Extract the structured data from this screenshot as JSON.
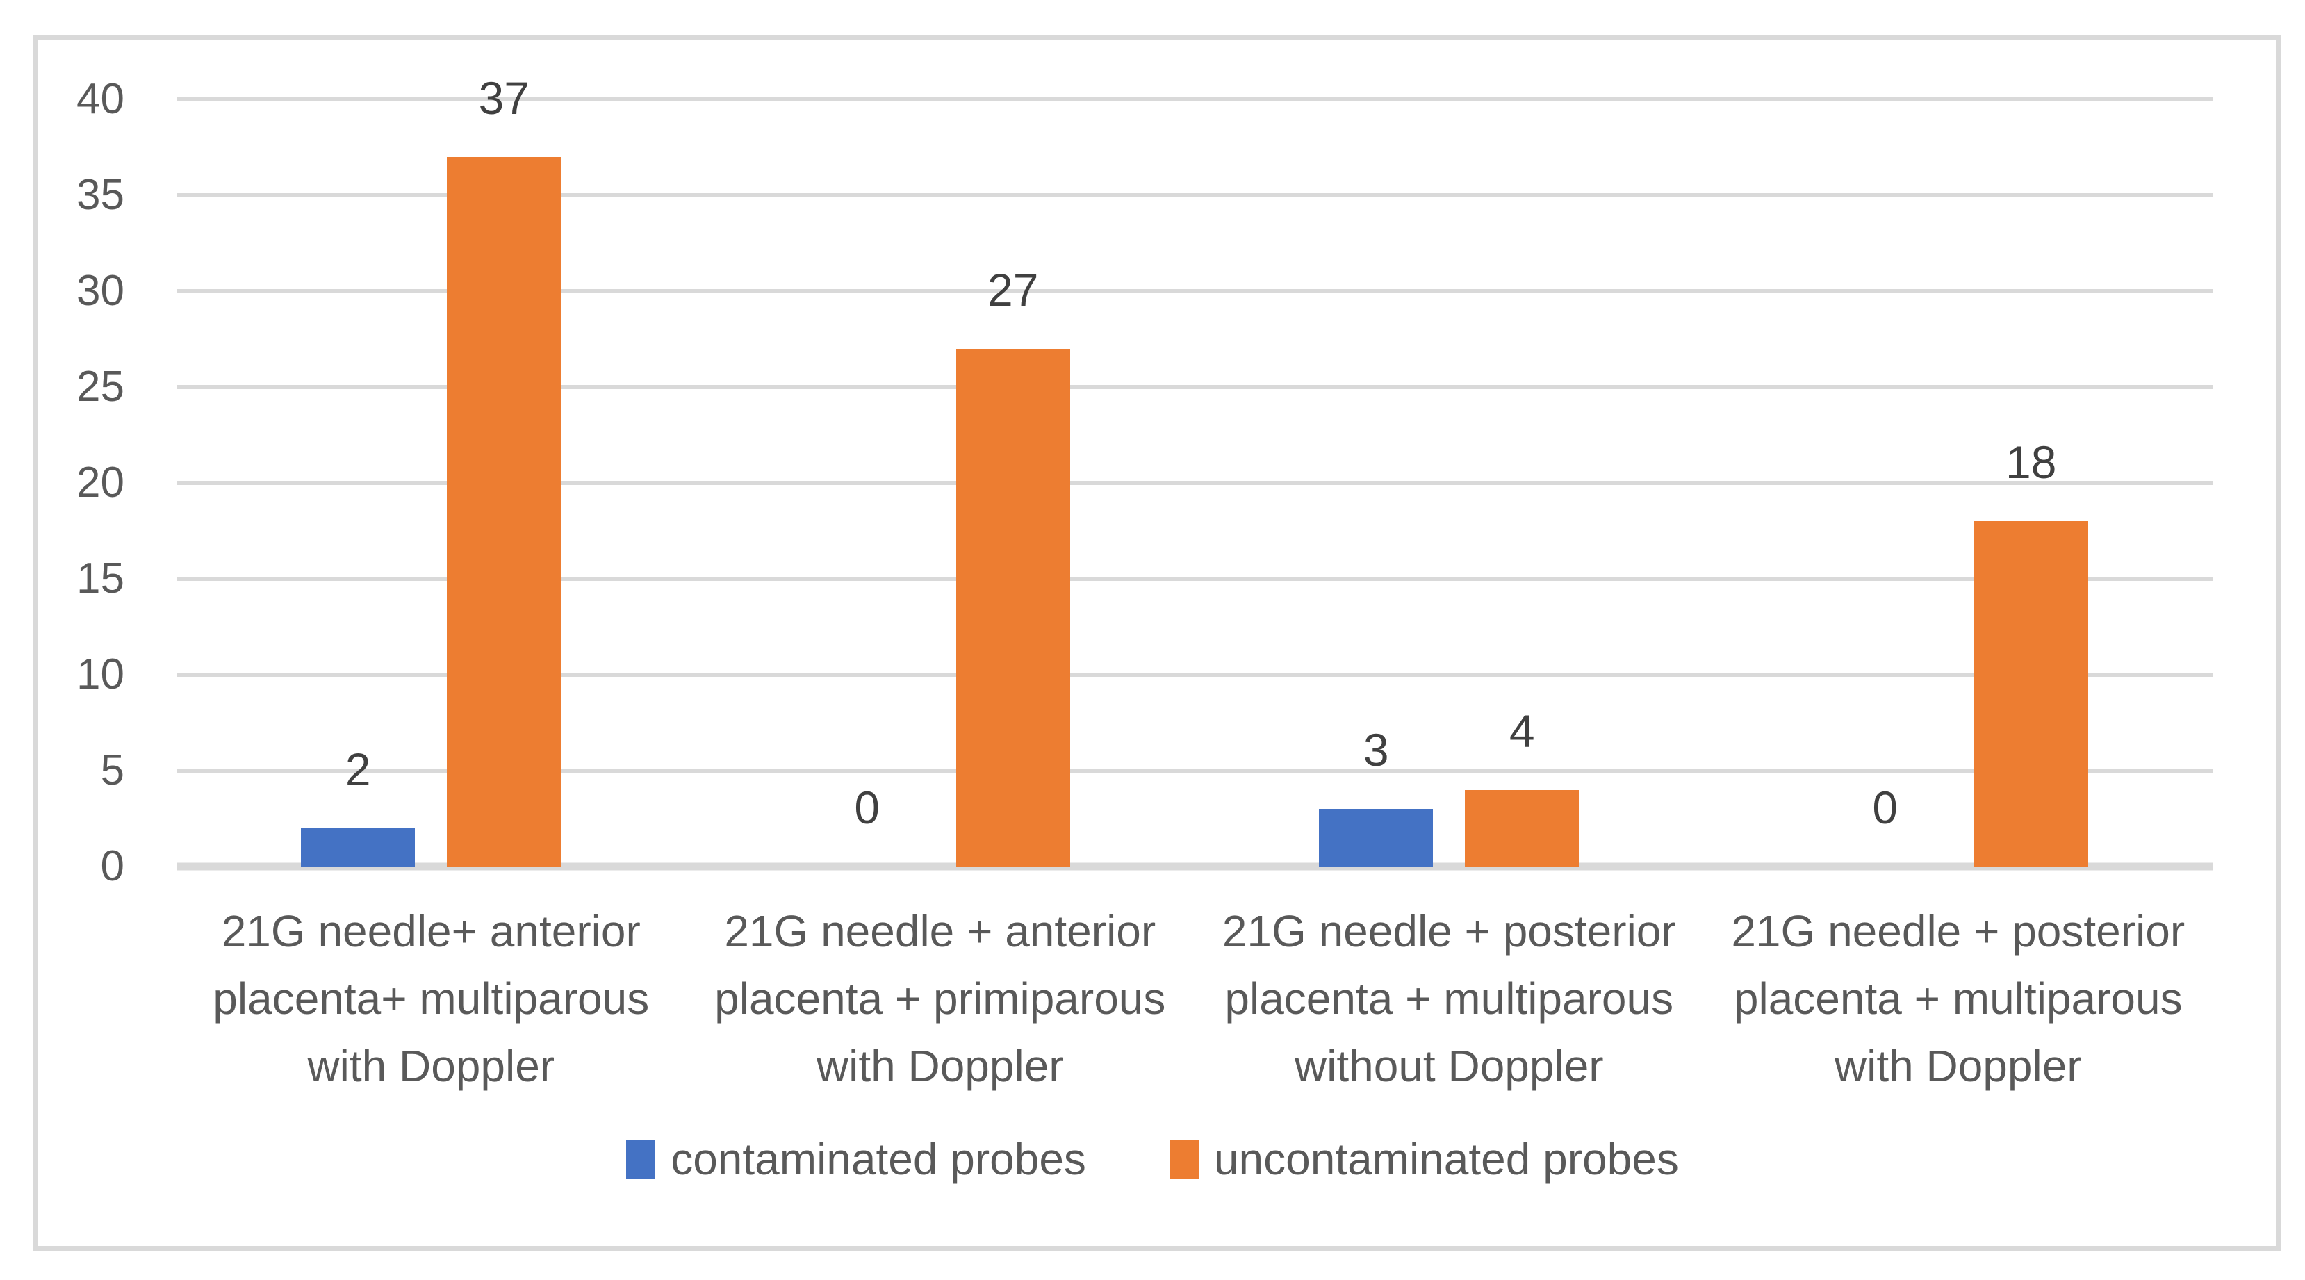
{
  "figure": {
    "background": "#ffffff",
    "border_color": "#d9d9d9"
  },
  "chart_data": {
    "type": "bar",
    "title": "",
    "categories": [
      "21G needle+ anterior\nplacenta+ multiparous\nwith Doppler",
      "21G needle + anterior\nplacenta + primiparous\nwith Doppler",
      "21G needle + posterior\nplacenta + multiparous\nwithout Doppler",
      "21G needle + posterior\nplacenta + multiparous\nwith Doppler"
    ],
    "series": [
      {
        "name": "contaminated probes",
        "color": "#4472c4",
        "values": [
          2,
          0,
          3,
          0
        ]
      },
      {
        "name": "uncontaminated probes",
        "color": "#ed7d31",
        "values": [
          37,
          27,
          4,
          18
        ]
      }
    ],
    "yticks": [
      0,
      5,
      10,
      15,
      20,
      25,
      30,
      35,
      40
    ],
    "ylim": [
      0,
      40
    ],
    "grid": true,
    "data_labels": true,
    "legend_position": "bottom",
    "axis_text_color": "#595959",
    "data_label_color": "#404040",
    "gridline_color": "#d9d9d9"
  }
}
